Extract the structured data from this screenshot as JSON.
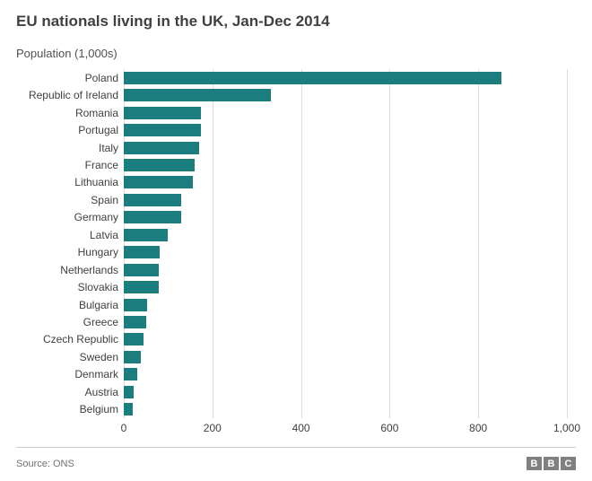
{
  "title": "EU nationals living in the UK, Jan-Dec 2014",
  "subtitle": "Population (1,000s)",
  "source": "Source: ONS",
  "logo": [
    "B",
    "B",
    "C"
  ],
  "chart": {
    "type": "bar_horizontal",
    "bar_color": "#1b7d7d",
    "background_color": "#ffffff",
    "grid_color": "#dcdcdc",
    "label_color": "#404040",
    "label_fontsize": 12,
    "xlim": [
      0,
      1000
    ],
    "xtick_step": 200,
    "xtick_labels": [
      "0",
      "200",
      "400",
      "600",
      "800",
      "1,000"
    ],
    "bar_height_ratio": 0.72,
    "categories": [
      "Poland",
      "Republic of Ireland",
      "Romania",
      "Portugal",
      "Italy",
      "France",
      "Lithuania",
      "Spain",
      "Germany",
      "Latvia",
      "Hungary",
      "Netherlands",
      "Slovakia",
      "Bulgaria",
      "Greece",
      "Czech Republic",
      "Sweden",
      "Denmark",
      "Austria",
      "Belgium"
    ],
    "values": [
      853,
      331,
      175,
      175,
      170,
      160,
      155,
      130,
      130,
      100,
      80,
      78,
      78,
      52,
      50,
      45,
      38,
      30,
      22,
      20
    ]
  }
}
